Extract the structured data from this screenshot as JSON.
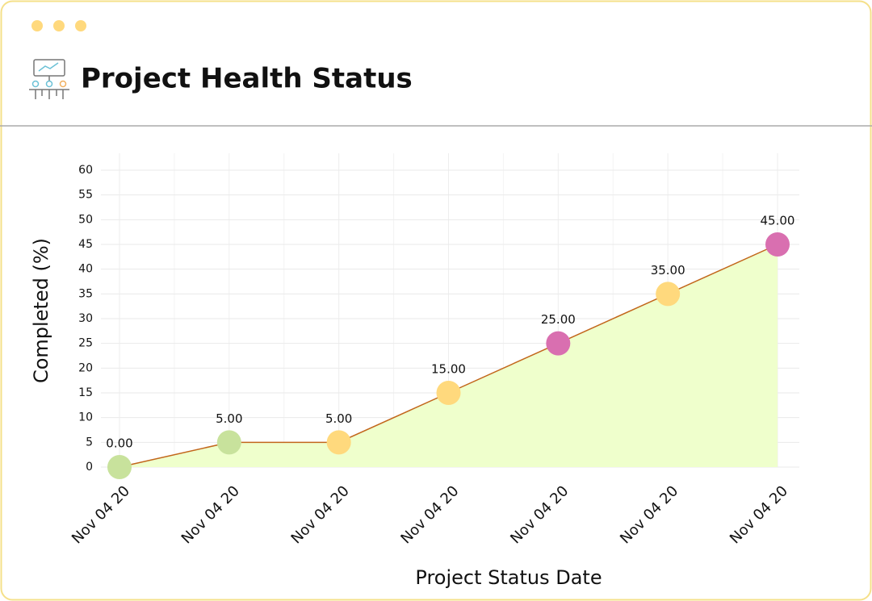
{
  "chart_data": {
    "type": "area_line",
    "title": "Project Health Status",
    "x_label": "Project Status Date",
    "y_label": "Completed (%)",
    "categories": [
      "Nov 04 20",
      "Nov 04 20",
      "Nov 04 20",
      "Nov 04 20",
      "Nov 04 20",
      "Nov 04 20",
      "Nov 04 20"
    ],
    "values": [
      0,
      5,
      5,
      15,
      25,
      35,
      45
    ],
    "value_labels": [
      "0.00",
      "5.00",
      "5.00",
      "15.00",
      "25.00",
      "35.00",
      "45.00"
    ],
    "point_colors": [
      "#c8e29c",
      "#c8e29c",
      "#ffd97d",
      "#ffd97d",
      "#d96fb0",
      "#ffd97d",
      "#d96fb0"
    ],
    "line_color": "#c2661b",
    "area_color": "#efffcc",
    "ylim": [
      0,
      60
    ],
    "yticks": [
      0,
      5,
      10,
      15,
      20,
      25,
      30,
      35,
      40,
      45,
      50,
      55,
      60
    ],
    "grid": true
  }
}
